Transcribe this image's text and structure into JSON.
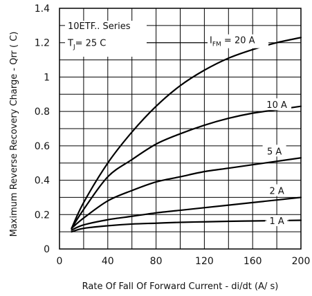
{
  "chart_data": {
    "type": "line",
    "xlabel": "Rate Of Fall Of Forward Current - di/dt (A/  s)",
    "ylabel": "Maximum Reverse Recovery Charge - Qrr (  C)",
    "xlim": [
      0,
      200
    ],
    "ylim": [
      0,
      1.4
    ],
    "x_ticks": [
      0,
      40,
      80,
      120,
      160,
      200
    ],
    "y_ticks": [
      0,
      0.2,
      0.4,
      0.6,
      0.8,
      1,
      1.2,
      1.4
    ],
    "x_tick_labels": [
      "0",
      "40",
      "80",
      "120",
      "160",
      "200"
    ],
    "y_tick_labels": [
      "0",
      "0.2",
      "0.4",
      "0.6",
      "0.8",
      "1",
      "1.2",
      "1.4"
    ],
    "grid": true,
    "annotations": {
      "series_line1": "10ETF.. Series",
      "series_line2_prefix": "T",
      "series_line2_sub": "J",
      "series_line2_suffix": "= 25   C",
      "ifm_prefix": "I",
      "ifm_sub": "FM",
      "ifm_suffix": " = 20 A"
    },
    "series": [
      {
        "name": "I FM = 20 A",
        "label": "",
        "x": [
          10,
          20,
          40,
          60,
          80,
          100,
          120,
          140,
          160,
          180,
          200
        ],
        "y": [
          0.12,
          0.27,
          0.5,
          0.68,
          0.83,
          0.95,
          1.04,
          1.11,
          1.16,
          1.2,
          1.23
        ]
      },
      {
        "name": "10 A",
        "label": "10 A",
        "x": [
          10,
          20,
          40,
          60,
          80,
          100,
          120,
          140,
          160,
          180,
          200
        ],
        "y": [
          0.12,
          0.23,
          0.42,
          0.52,
          0.61,
          0.67,
          0.72,
          0.76,
          0.79,
          0.81,
          0.83
        ]
      },
      {
        "name": "5 A",
        "label": "5 A",
        "x": [
          10,
          20,
          40,
          60,
          80,
          100,
          120,
          140,
          160,
          180,
          200
        ],
        "y": [
          0.12,
          0.18,
          0.28,
          0.34,
          0.39,
          0.42,
          0.45,
          0.47,
          0.49,
          0.51,
          0.53
        ]
      },
      {
        "name": "2 A",
        "label": "2 A",
        "x": [
          10,
          20,
          40,
          60,
          80,
          100,
          120,
          140,
          160,
          180,
          200
        ],
        "y": [
          0.11,
          0.14,
          0.17,
          0.19,
          0.21,
          0.225,
          0.24,
          0.255,
          0.27,
          0.285,
          0.3
        ]
      },
      {
        "name": "1 A",
        "label": "1 A",
        "x": [
          10,
          20,
          40,
          60,
          80,
          100,
          120,
          140,
          160,
          180,
          200
        ],
        "y": [
          0.1,
          0.12,
          0.135,
          0.145,
          0.15,
          0.155,
          0.158,
          0.161,
          0.163,
          0.165,
          0.167
        ]
      }
    ]
  }
}
